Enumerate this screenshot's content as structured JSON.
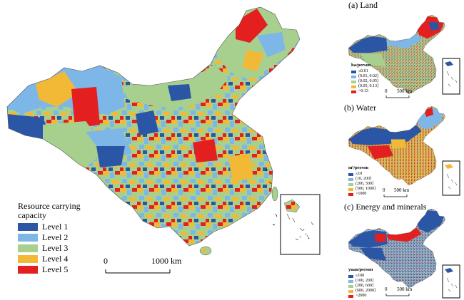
{
  "main_map": {
    "legend": {
      "title_line1": "Resource carrying",
      "title_line2": "capacity",
      "items": [
        {
          "label": "Level 1",
          "color": "#2b56a6"
        },
        {
          "label": "Level 2",
          "color": "#7db7e8"
        },
        {
          "label": "Level 3",
          "color": "#a7d08f"
        },
        {
          "label": "Level 4",
          "color": "#f2b936"
        },
        {
          "label": "Level 5",
          "color": "#e3201f"
        }
      ]
    },
    "scale": {
      "start": "0",
      "end": "1000 km"
    }
  },
  "panels": [
    {
      "title": "(a) Land",
      "unit": "ha/person",
      "items": [
        {
          "label": "≤0.01",
          "color": "#2b56a6"
        },
        {
          "label": "(0.01, 0.02]",
          "color": "#7db7e8"
        },
        {
          "label": "(0.02, 0.05]",
          "color": "#a7d08f"
        },
        {
          "label": "(0.05, 0.13]",
          "color": "#f2b936"
        },
        {
          "label": ">0.13",
          "color": "#e3201f"
        }
      ],
      "scale": {
        "start": "0",
        "end": "500 km"
      }
    },
    {
      "title": "(b) Water",
      "unit": "m³/person",
      "items": [
        {
          "label": "≤10",
          "color": "#2b56a6"
        },
        {
          "label": "(10, 200]",
          "color": "#7db7e8"
        },
        {
          "label": "(200, 500]",
          "color": "#a7d08f"
        },
        {
          "label": "(500, 1000]",
          "color": "#f2b936"
        },
        {
          "label": ">1000",
          "color": "#e3201f"
        }
      ],
      "scale": {
        "start": "0",
        "end": "500 km"
      }
    },
    {
      "title": "(c) Energy and minerals",
      "unit": "yuan/person",
      "items": [
        {
          "label": "≤100",
          "color": "#2b56a6"
        },
        {
          "label": "(100, 200]",
          "color": "#7db7e8"
        },
        {
          "label": "(200, 600]",
          "color": "#a7d08f"
        },
        {
          "label": "(600, 2000]",
          "color": "#f2b936"
        },
        {
          "label": ">2000",
          "color": "#e3201f"
        }
      ],
      "scale": {
        "start": "0",
        "end": "500 km"
      }
    }
  ]
}
